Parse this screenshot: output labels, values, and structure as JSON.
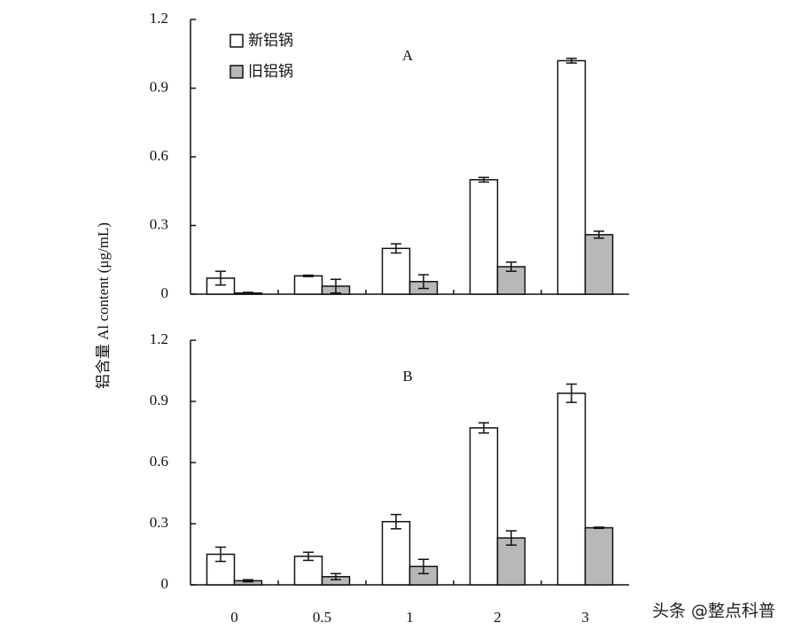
{
  "ylabel": "铝含量  Al content (μg/mL)",
  "watermark": "头条 @整点科普",
  "chart_data": [
    {
      "type": "bar",
      "title": "A",
      "categories": [
        null,
        null,
        null,
        null,
        null
      ],
      "series": [
        {
          "name": "新铝锅",
          "color": "#ffffff",
          "values": [
            0.07,
            0.08,
            0.2,
            0.5,
            1.02
          ],
          "errors": [
            0.03,
            0.003,
            0.02,
            0.01,
            0.01
          ]
        },
        {
          "name": "旧铝锅",
          "color": "#b8b8b8",
          "values": [
            0.005,
            0.035,
            0.055,
            0.12,
            0.26
          ],
          "errors": [
            0.003,
            0.03,
            0.03,
            0.02,
            0.015
          ]
        }
      ],
      "ylim": [
        0,
        1.2
      ],
      "yticks": [
        0,
        0.3,
        0.6,
        0.9,
        1.2
      ]
    },
    {
      "type": "bar",
      "title": "B",
      "categories": [
        "0",
        "0.5",
        "1",
        "2",
        "3"
      ],
      "series": [
        {
          "color": "#ffffff",
          "values": [
            0.15,
            0.14,
            0.31,
            0.77,
            0.94
          ],
          "errors": [
            0.035,
            0.02,
            0.035,
            0.025,
            0.045
          ]
        },
        {
          "color": "#b8b8b8",
          "values": [
            0.02,
            0.04,
            0.09,
            0.23,
            0.28
          ],
          "errors": [
            0.005,
            0.015,
            0.035,
            0.035,
            0.003
          ]
        }
      ],
      "ylim": [
        0,
        1.2
      ],
      "yticks": [
        0,
        0.3,
        0.6,
        0.9,
        1.2
      ]
    }
  ]
}
